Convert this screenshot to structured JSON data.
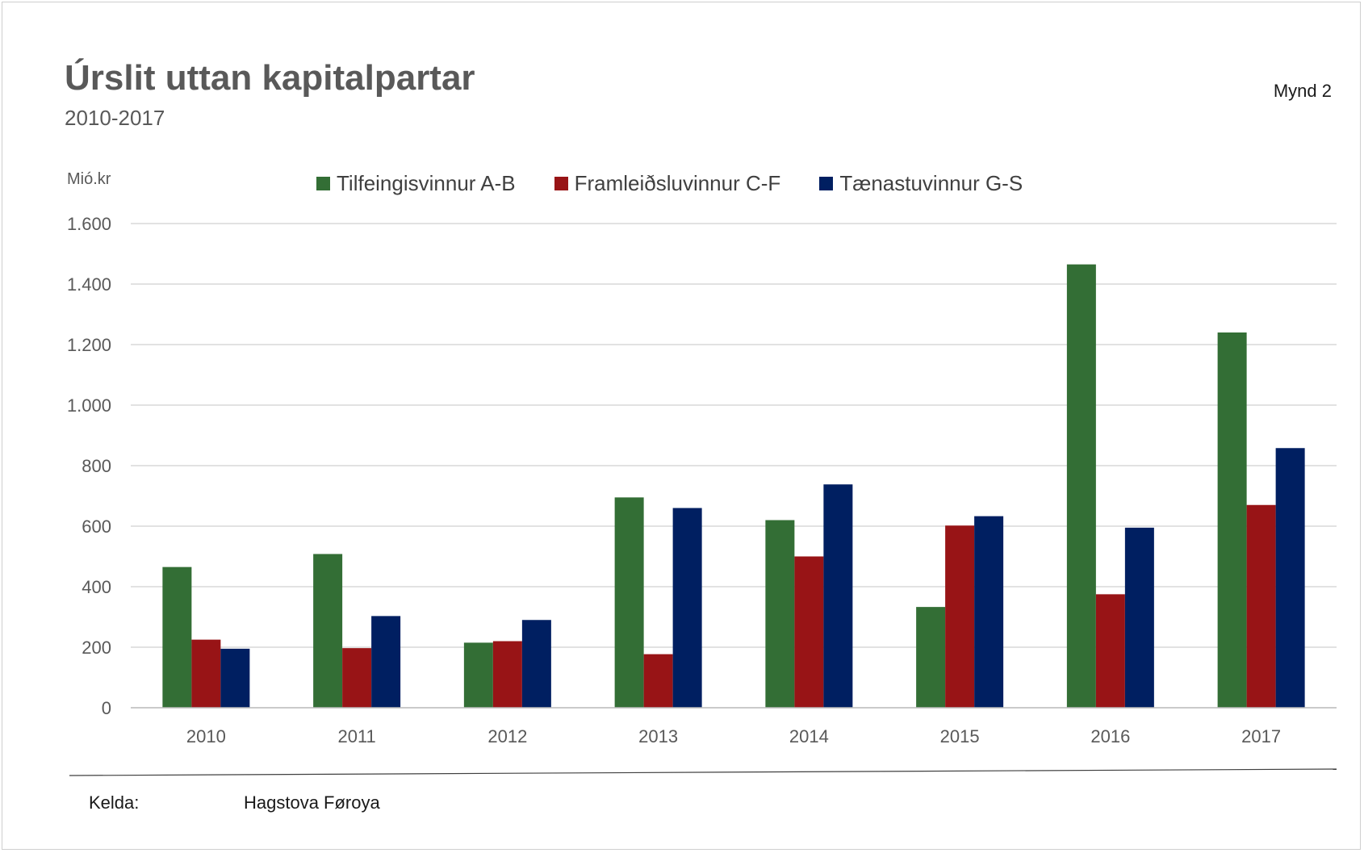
{
  "header": {
    "title": "Úrslit uttan kapitalpartar",
    "subtitle": "2010-2017",
    "figure_label": "Mynd 2"
  },
  "footer": {
    "source_label": "Kelda:",
    "source_value": "Hagstova Føroya"
  },
  "chart_data": {
    "type": "bar",
    "title": "Úrslit uttan kapitalpartar",
    "subtitle": "2010-2017",
    "ylabel": "Mió.kr",
    "xlabel": "",
    "categories": [
      "2010",
      "2011",
      "2012",
      "2013",
      "2014",
      "2015",
      "2016",
      "2017"
    ],
    "ylim": [
      0,
      1600
    ],
    "yticks": [
      0,
      200,
      400,
      600,
      800,
      1000,
      1200,
      1400,
      1600
    ],
    "ytick_labels": [
      "0",
      "200",
      "400",
      "600",
      "800",
      "1.000",
      "1.200",
      "1.400",
      "1.600"
    ],
    "grid": true,
    "legend_position": "top",
    "series": [
      {
        "name": "Tilfeingisvinnur A-B",
        "color": "#336e35",
        "values": [
          465,
          508,
          215,
          695,
          620,
          333,
          1465,
          1240
        ]
      },
      {
        "name": "Framleiðsluvinnur C-F",
        "color": "#981416",
        "values": [
          225,
          197,
          220,
          177,
          500,
          602,
          375,
          670
        ]
      },
      {
        "name": "Tænastuvinnur G-S",
        "color": "#001f61",
        "values": [
          195,
          303,
          290,
          660,
          738,
          633,
          595,
          858
        ]
      }
    ]
  }
}
